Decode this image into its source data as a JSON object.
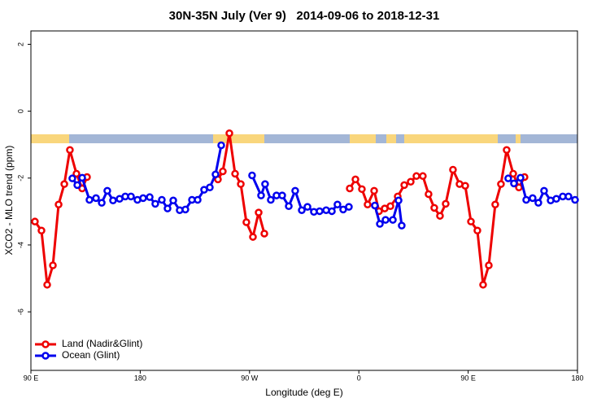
{
  "chart_data": {
    "type": "line",
    "title": "30N-35N July (Ver 9)   2014-09-06 to 2018-12-31",
    "x_label": "Longitude (deg E)",
    "y_label": "XCO2 - MLO trend (ppm)",
    "xlim": [
      90,
      540
    ],
    "ylim": [
      -7.75,
      2.4
    ],
    "xticks": [
      {
        "value": 90,
        "label": "90 E"
      },
      180,
      {
        "value": 270,
        "label": "90 W"
      },
      {
        "value": 360,
        "label": "0"
      },
      {
        "value": 450,
        "label": "90 E"
      },
      {
        "value": 540,
        "label": "180"
      }
    ],
    "yticks": [
      2,
      0,
      -2,
      -4,
      -6
    ],
    "legend": "bottom-left",
    "series": [
      {
        "name": "Land (Nadir&Glint)",
        "color": "#ee0000",
        "x": [
          93.3,
          98.7,
          103.4,
          108.1,
          112.8,
          117.5,
          122.1,
          127.5,
          132.2,
          136.2,
          null,
          244.0,
          248.0,
          253.4,
          258.1,
          262.8,
          267.4,
          272.8,
          277.5,
          282.2,
          null,
          352.5,
          357.2,
          362.5,
          367.2,
          372.6,
          376.6,
          381.3,
          386.0,
          392.0,
          397.4,
          402.7,
          407.4,
          412.7,
          417.4,
          422.1,
          426.8,
          431.5,
          437.5,
          442.9,
          447.6,
          452.3,
          457.6,
          462.3,
          467.0,
          472.3,
          477.0,
          481.7,
          487.1,
          491.8,
          496.4
        ],
        "values": [
          -3.3,
          -3.57,
          -5.19,
          -4.61,
          -2.79,
          -2.18,
          -1.16,
          -1.87,
          -2.31,
          -1.97,
          null,
          -2.04,
          -1.8,
          -0.66,
          -1.87,
          -2.18,
          -3.32,
          -3.76,
          -3.03,
          -3.66,
          null,
          -2.31,
          -2.04,
          -2.33,
          -2.79,
          -2.38,
          -2.99,
          -2.91,
          -2.84,
          -2.55,
          -2.21,
          -2.11,
          -1.94,
          -1.94,
          -2.48,
          -2.89,
          -3.13,
          -2.77,
          -1.75,
          -2.18,
          -2.23,
          -3.3,
          -3.57,
          -5.19,
          -4.61,
          -2.79,
          -2.18,
          -1.16,
          -1.87,
          -2.28,
          -1.97
        ]
      },
      {
        "name": "Ocean (Glint)",
        "color": "#0000ee",
        "x": [
          124.1,
          128.2,
          132.2,
          138.2,
          143.6,
          148.3,
          152.9,
          157.6,
          163.0,
          167.7,
          172.4,
          177.7,
          182.4,
          187.8,
          192.4,
          197.8,
          202.5,
          207.2,
          212.5,
          217.2,
          222.6,
          227.3,
          232.6,
          237.3,
          242.0,
          246.7,
          null,
          272.1,
          279.5,
          282.8,
          287.5,
          292.2,
          296.9,
          302.3,
          307.6,
          313.0,
          317.7,
          323.0,
          327.7,
          333.1,
          337.8,
          342.4,
          347.1,
          351.8,
          null,
          373.2,
          377.3,
          382.0,
          388.0,
          392.7,
          395.3,
          null,
          483.0,
          487.7,
          493.1,
          497.8,
          503.1,
          507.8,
          512.5,
          517.9,
          522.6,
          527.9,
          532.6,
          538.0
        ],
        "values": [
          -2.01,
          -2.21,
          -1.99,
          -2.65,
          -2.6,
          -2.74,
          -2.38,
          -2.67,
          -2.62,
          -2.55,
          -2.55,
          -2.65,
          -2.6,
          -2.57,
          -2.77,
          -2.65,
          -2.91,
          -2.67,
          -2.96,
          -2.94,
          -2.65,
          -2.65,
          -2.35,
          -2.28,
          -1.89,
          -1.02,
          null,
          -1.92,
          -2.52,
          -2.18,
          -2.65,
          -2.52,
          -2.52,
          -2.84,
          -2.38,
          -2.96,
          -2.86,
          -3.01,
          -2.99,
          -2.96,
          -2.99,
          -2.79,
          -2.94,
          -2.86,
          null,
          -2.82,
          -3.37,
          -3.25,
          -3.25,
          -2.67,
          -3.42,
          null,
          -2.01,
          -2.16,
          -1.99,
          -2.65,
          -2.6,
          -2.74,
          -2.38,
          -2.67,
          -2.62,
          -2.55,
          -2.55,
          -2.65
        ]
      }
    ]
  }
}
